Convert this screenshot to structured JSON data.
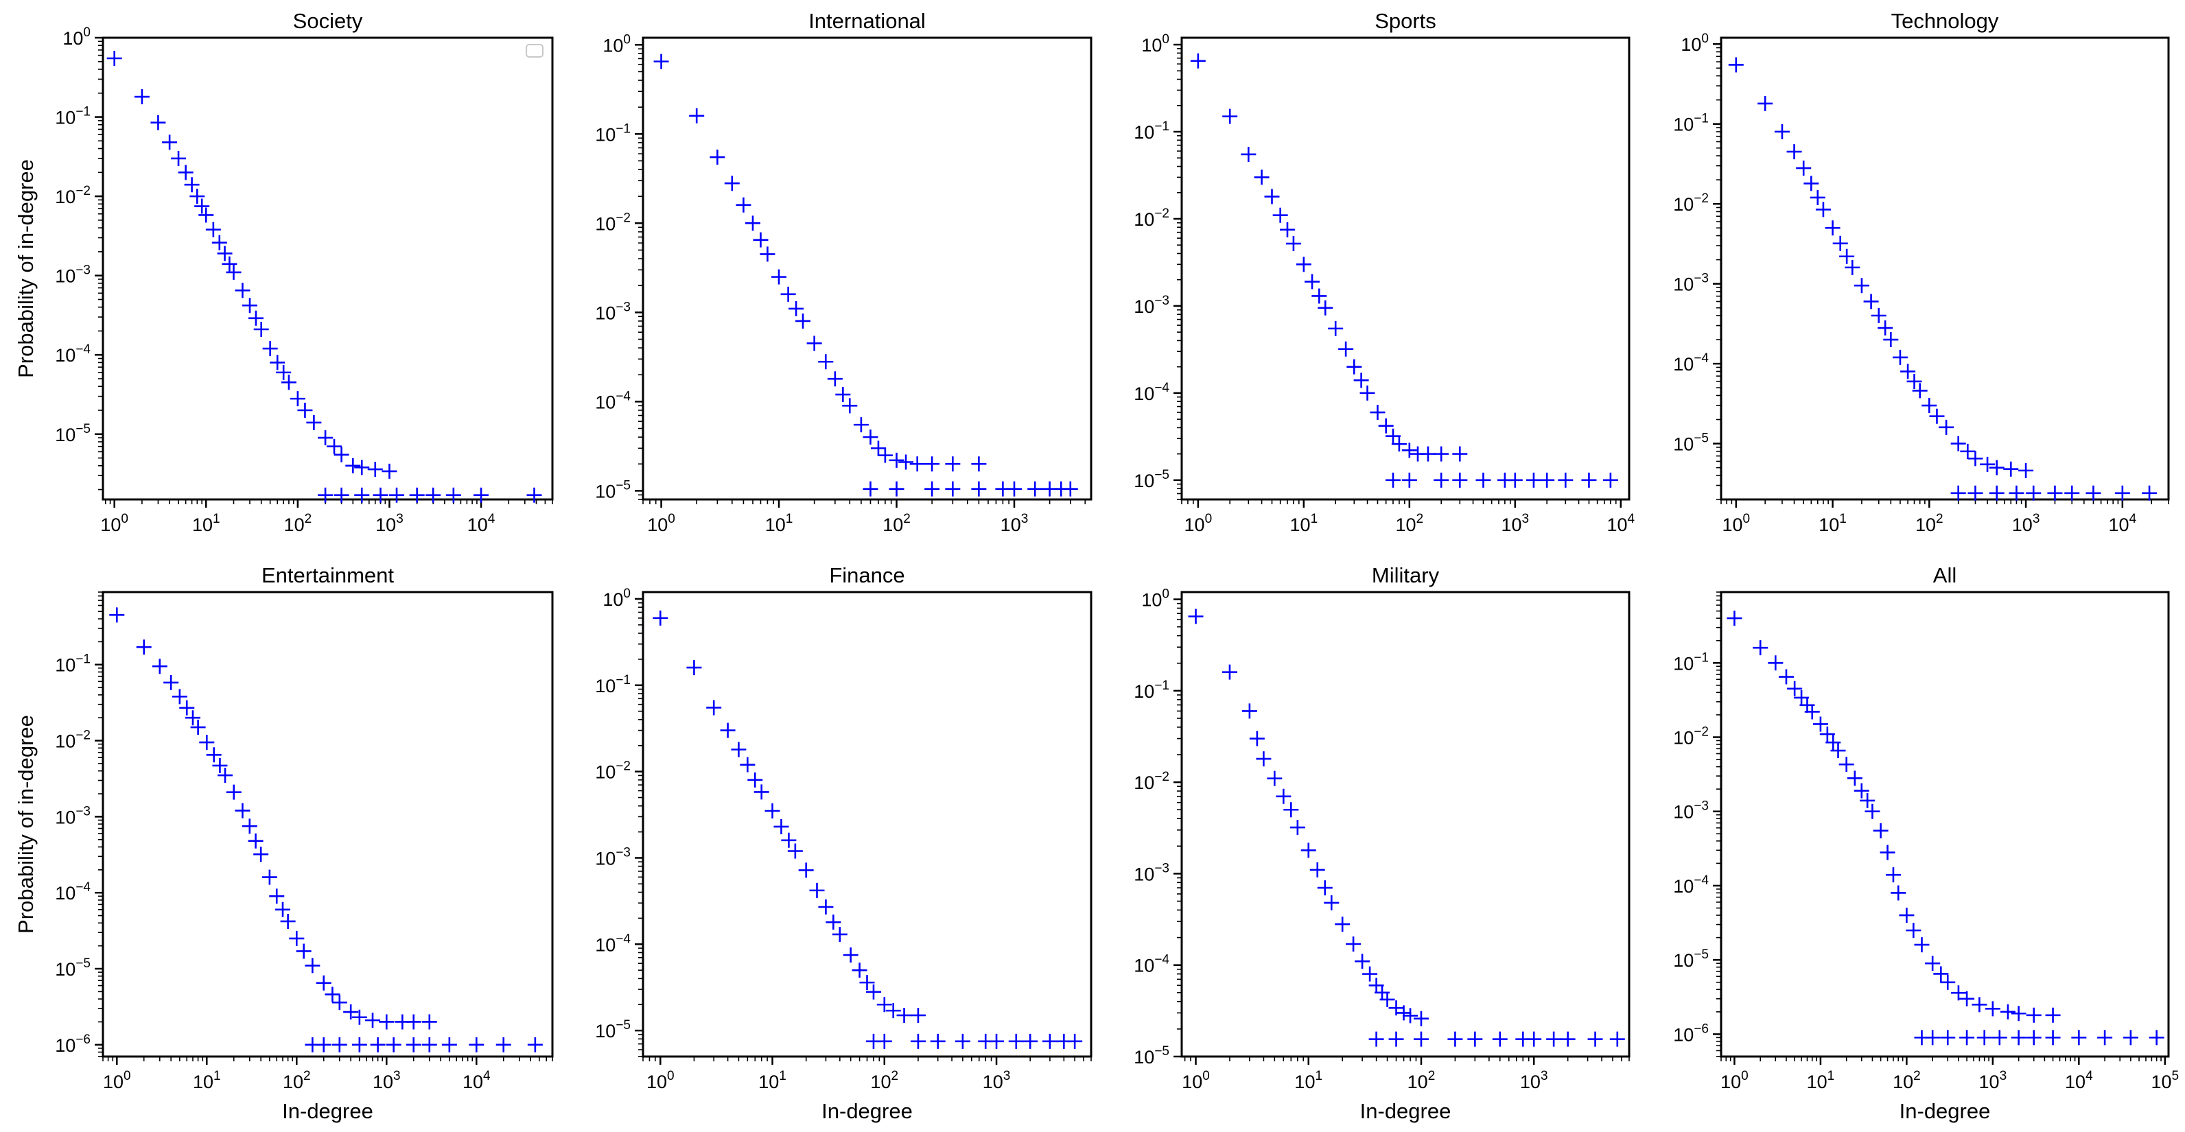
{
  "figure": {
    "marker_color": "#0000ff",
    "xlabel": "In-degree",
    "ylabel": "Probability of in-degree"
  },
  "chart_data": [
    {
      "type": "scatter",
      "title": "Society",
      "scale": "log-log",
      "show_xlabel": false,
      "show_ylabel": true,
      "legend": "top-right-empty",
      "xlim": [
        0.75,
        60000
      ],
      "ylim": [
        1.5e-06,
        1.0
      ],
      "xticks": [
        0,
        1,
        2,
        3,
        4
      ],
      "yticks": [
        0,
        -1,
        -2,
        -3,
        -4,
        -5
      ],
      "x": [
        1,
        2,
        3,
        4,
        5,
        6,
        7,
        8,
        9,
        10,
        12,
        14,
        16,
        18,
        20,
        25,
        30,
        35,
        40,
        50,
        60,
        70,
        80,
        100,
        120,
        150,
        200,
        250,
        300,
        400,
        500,
        700,
        1000,
        200,
        300,
        500,
        800,
        1200,
        2000,
        3000,
        5000,
        10000,
        38000
      ],
      "y": [
        0.55,
        0.18,
        0.085,
        0.048,
        0.03,
        0.02,
        0.014,
        0.01,
        0.0075,
        0.0058,
        0.0038,
        0.0026,
        0.0019,
        0.0014,
        0.0011,
        0.00065,
        0.00042,
        0.00029,
        0.00021,
        0.00012,
        8e-05,
        6e-05,
        4.5e-05,
        2.8e-05,
        2e-05,
        1.4e-05,
        9e-06,
        7e-06,
        5.5e-06,
        4e-06,
        3.8e-06,
        3.6e-06,
        3.4e-06,
        1.7e-06,
        1.7e-06,
        1.7e-06,
        1.7e-06,
        1.7e-06,
        1.7e-06,
        1.7e-06,
        1.7e-06,
        1.7e-06,
        1.7e-06
      ]
    },
    {
      "type": "scatter",
      "title": "International",
      "scale": "log-log",
      "show_xlabel": false,
      "show_ylabel": false,
      "xlim": [
        0.7,
        4500
      ],
      "ylim": [
        8e-06,
        1.2
      ],
      "xticks": [
        0,
        1,
        2,
        3
      ],
      "yticks": [
        0,
        -1,
        -2,
        -3,
        -4,
        -5
      ],
      "x": [
        1,
        2,
        3,
        4,
        5,
        6,
        7,
        8,
        10,
        12,
        14,
        16,
        20,
        25,
        30,
        35,
        40,
        50,
        60,
        70,
        80,
        100,
        120,
        150,
        200,
        300,
        500,
        60,
        100,
        200,
        300,
        500,
        800,
        1000,
        1500,
        2000,
        2500,
        3000
      ],
      "y": [
        0.65,
        0.16,
        0.055,
        0.028,
        0.016,
        0.01,
        0.0065,
        0.0045,
        0.0025,
        0.0016,
        0.0011,
        0.0008,
        0.00045,
        0.00028,
        0.00018,
        0.00012,
        9e-05,
        5.5e-05,
        4e-05,
        3e-05,
        2.5e-05,
        2.2e-05,
        2.1e-05,
        2e-05,
        2e-05,
        2e-05,
        2e-05,
        1.05e-05,
        1.05e-05,
        1.05e-05,
        1.05e-05,
        1.05e-05,
        1.05e-05,
        1.05e-05,
        1.05e-05,
        1.05e-05,
        1.05e-05,
        1.05e-05
      ]
    },
    {
      "type": "scatter",
      "title": "Sports",
      "scale": "log-log",
      "show_xlabel": false,
      "show_ylabel": false,
      "xlim": [
        0.7,
        12000
      ],
      "ylim": [
        6e-06,
        1.2
      ],
      "xticks": [
        0,
        1,
        2,
        3,
        4
      ],
      "yticks": [
        0,
        -1,
        -2,
        -3,
        -4,
        -5
      ],
      "x": [
        1,
        2,
        3,
        4,
        5,
        6,
        7,
        8,
        10,
        12,
        14,
        16,
        20,
        25,
        30,
        35,
        40,
        50,
        60,
        70,
        80,
        100,
        120,
        150,
        200,
        300,
        70,
        100,
        200,
        300,
        500,
        800,
        1000,
        1500,
        2000,
        3000,
        5000,
        8000
      ],
      "y": [
        0.65,
        0.15,
        0.055,
        0.03,
        0.018,
        0.011,
        0.0075,
        0.0052,
        0.003,
        0.0019,
        0.0013,
        0.00095,
        0.00055,
        0.00032,
        0.0002,
        0.00014,
        0.0001,
        6e-05,
        4.2e-05,
        3.2e-05,
        2.6e-05,
        2.2e-05,
        2e-05,
        2e-05,
        2e-05,
        2e-05,
        1e-05,
        1e-05,
        1e-05,
        1e-05,
        1e-05,
        1e-05,
        1e-05,
        1e-05,
        1e-05,
        1e-05,
        1e-05,
        1e-05
      ]
    },
    {
      "type": "scatter",
      "title": "Technology",
      "scale": "log-log",
      "show_xlabel": false,
      "show_ylabel": false,
      "xlim": [
        0.7,
        30000
      ],
      "ylim": [
        2e-06,
        1.2
      ],
      "xticks": [
        0,
        1,
        2,
        3,
        4
      ],
      "yticks": [
        0,
        -1,
        -2,
        -3,
        -4,
        -5
      ],
      "x": [
        1,
        2,
        3,
        4,
        5,
        6,
        7,
        8,
        10,
        12,
        14,
        16,
        20,
        25,
        30,
        35,
        40,
        50,
        60,
        70,
        80,
        100,
        120,
        150,
        200,
        250,
        300,
        400,
        500,
        700,
        1000,
        200,
        300,
        500,
        800,
        1200,
        2000,
        3000,
        5000,
        10000,
        19000
      ],
      "y": [
        0.55,
        0.18,
        0.08,
        0.045,
        0.028,
        0.018,
        0.012,
        0.0085,
        0.005,
        0.0032,
        0.0022,
        0.0016,
        0.00095,
        0.0006,
        0.0004,
        0.00028,
        0.0002,
        0.00012,
        8e-05,
        6e-05,
        4.6e-05,
        3e-05,
        2.2e-05,
        1.6e-05,
        1e-05,
        8e-06,
        6.5e-06,
        5.5e-06,
        5e-06,
        4.8e-06,
        4.6e-06,
        2.4e-06,
        2.4e-06,
        2.4e-06,
        2.4e-06,
        2.4e-06,
        2.4e-06,
        2.4e-06,
        2.4e-06,
        2.4e-06,
        2.4e-06
      ]
    },
    {
      "type": "scatter",
      "title": "Entertainment",
      "scale": "log-log",
      "show_xlabel": true,
      "show_ylabel": true,
      "xlim": [
        0.7,
        70000
      ],
      "ylim": [
        7e-07,
        0.9
      ],
      "xticks": [
        0,
        1,
        2,
        3,
        4
      ],
      "yticks": [
        -1,
        -2,
        -3,
        -4,
        -5,
        -6
      ],
      "x": [
        1,
        2,
        3,
        4,
        5,
        6,
        7,
        8,
        10,
        12,
        14,
        16,
        20,
        25,
        30,
        35,
        40,
        50,
        60,
        70,
        80,
        100,
        120,
        150,
        200,
        250,
        300,
        400,
        500,
        700,
        1000,
        1500,
        2000,
        3000,
        150,
        200,
        300,
        500,
        800,
        1200,
        2000,
        3000,
        5000,
        10000,
        20000,
        45000
      ],
      "y": [
        0.45,
        0.17,
        0.095,
        0.058,
        0.038,
        0.027,
        0.02,
        0.015,
        0.0095,
        0.0065,
        0.0047,
        0.0035,
        0.0021,
        0.0012,
        0.00075,
        0.00048,
        0.00032,
        0.00016,
        9e-05,
        6e-05,
        4.2e-05,
        2.5e-05,
        1.7e-05,
        1.1e-05,
        6.5e-06,
        4.6e-06,
        3.6e-06,
        2.7e-06,
        2.3e-06,
        2.1e-06,
        2e-06,
        2e-06,
        2e-06,
        2e-06,
        1e-06,
        1e-06,
        1e-06,
        1e-06,
        1e-06,
        1e-06,
        1e-06,
        1e-06,
        1e-06,
        1e-06,
        1e-06,
        1e-06
      ]
    },
    {
      "type": "scatter",
      "title": "Finance",
      "scale": "log-log",
      "show_xlabel": true,
      "show_ylabel": false,
      "xlim": [
        0.7,
        7000
      ],
      "ylim": [
        5e-06,
        1.2
      ],
      "xticks": [
        0,
        1,
        2,
        3
      ],
      "yticks": [
        0,
        -1,
        -2,
        -3,
        -4,
        -5
      ],
      "x": [
        1,
        2,
        3,
        4,
        5,
        6,
        7,
        8,
        10,
        12,
        14,
        16,
        20,
        25,
        30,
        35,
        40,
        50,
        60,
        70,
        80,
        100,
        120,
        150,
        200,
        80,
        100,
        200,
        300,
        500,
        800,
        1000,
        1500,
        2000,
        3000,
        4000,
        5000
      ],
      "y": [
        0.6,
        0.16,
        0.055,
        0.03,
        0.018,
        0.012,
        0.008,
        0.0058,
        0.0035,
        0.0023,
        0.0016,
        0.0012,
        0.00072,
        0.00042,
        0.00027,
        0.00018,
        0.00013,
        7.5e-05,
        5e-05,
        3.6e-05,
        2.8e-05,
        2e-05,
        1.7e-05,
        1.5e-05,
        1.5e-05,
        7.5e-06,
        7.5e-06,
        7.5e-06,
        7.5e-06,
        7.5e-06,
        7.5e-06,
        7.5e-06,
        7.5e-06,
        7.5e-06,
        7.5e-06,
        7.5e-06,
        7.5e-06
      ]
    },
    {
      "type": "scatter",
      "title": "Military",
      "scale": "log-log",
      "show_xlabel": true,
      "show_ylabel": false,
      "xlim": [
        0.75,
        7000
      ],
      "ylim": [
        1e-05,
        1.2
      ],
      "xticks": [
        0,
        1,
        2,
        3
      ],
      "yticks": [
        0,
        -1,
        -2,
        -3,
        -4,
        -5
      ],
      "x": [
        1,
        2,
        3,
        3.5,
        4,
        5,
        6,
        7,
        8,
        10,
        12,
        14,
        16,
        20,
        25,
        30,
        35,
        40,
        45,
        50,
        60,
        70,
        80,
        100,
        40,
        60,
        100,
        200,
        300,
        500,
        800,
        1000,
        1500,
        2000,
        3500,
        5500
      ],
      "y": [
        0.65,
        0.16,
        0.06,
        0.03,
        0.018,
        0.011,
        0.007,
        0.005,
        0.0032,
        0.0018,
        0.0011,
        0.0007,
        0.00048,
        0.00028,
        0.00017,
        0.00011,
        8e-05,
        6e-05,
        5e-05,
        4.2e-05,
        3.4e-05,
        3e-05,
        2.8e-05,
        2.6e-05,
        1.55e-05,
        1.55e-05,
        1.55e-05,
        1.55e-05,
        1.55e-05,
        1.55e-05,
        1.55e-05,
        1.55e-05,
        1.55e-05,
        1.55e-05,
        1.55e-05,
        1.55e-05
      ]
    },
    {
      "type": "scatter",
      "title": "All",
      "scale": "log-log",
      "show_xlabel": true,
      "show_ylabel": false,
      "xlim": [
        0.7,
        110000
      ],
      "ylim": [
        5e-07,
        0.9
      ],
      "xticks": [
        0,
        1,
        2,
        3,
        4,
        5
      ],
      "yticks": [
        -1,
        -2,
        -3,
        -4,
        -5,
        -6
      ],
      "x": [
        1,
        2,
        3,
        4,
        5,
        6,
        7,
        8,
        10,
        12,
        14,
        16,
        20,
        25,
        30,
        35,
        40,
        50,
        60,
        70,
        80,
        100,
        120,
        150,
        200,
        250,
        300,
        400,
        500,
        700,
        1000,
        1500,
        2000,
        3000,
        5000,
        150,
        200,
        300,
        500,
        800,
        1200,
        2000,
        3000,
        5000,
        10000,
        20000,
        40000,
        80000
      ],
      "y": [
        0.4,
        0.16,
        0.1,
        0.065,
        0.045,
        0.034,
        0.027,
        0.022,
        0.015,
        0.011,
        0.0085,
        0.0066,
        0.0043,
        0.0028,
        0.0019,
        0.0014,
        0.001,
        0.00055,
        0.00028,
        0.00014,
        8e-05,
        4e-05,
        2.5e-05,
        1.6e-05,
        9e-06,
        6.5e-06,
        5e-06,
        3.6e-06,
        3e-06,
        2.5e-06,
        2.2e-06,
        2e-06,
        1.9e-06,
        1.8e-06,
        1.8e-06,
        9e-07,
        9e-07,
        9e-07,
        9e-07,
        9e-07,
        9e-07,
        9e-07,
        9e-07,
        9e-07,
        9e-07,
        9e-07,
        9e-07,
        9e-07
      ]
    }
  ]
}
